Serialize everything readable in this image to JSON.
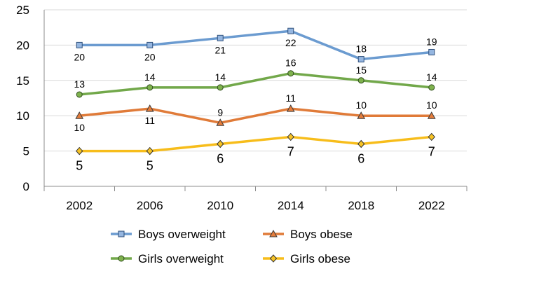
{
  "chart_data": {
    "type": "line",
    "title": "",
    "xlabel": "",
    "ylabel": "",
    "categories": [
      "2002",
      "2006",
      "2010",
      "2014",
      "2018",
      "2022"
    ],
    "ylim": [
      0,
      25
    ],
    "yticks": [
      "0",
      "5",
      "10",
      "15",
      "20",
      "25"
    ],
    "grid": true,
    "legend_position": "bottom",
    "series": [
      {
        "name": "Boys overweight",
        "values": [
          20,
          20,
          21,
          22,
          18,
          19
        ],
        "labels": [
          "20",
          "20",
          "21",
          "22",
          "18",
          "19"
        ],
        "color": "#6b9bd0",
        "marker": "square",
        "marker_fill": "#95b6e0",
        "marker_stroke": "#2e4f7a"
      },
      {
        "name": "Boys obese",
        "values": [
          10,
          11,
          9,
          11,
          10,
          10
        ],
        "labels": [
          "10",
          "11",
          "9",
          "11",
          "10",
          "10"
        ],
        "color": "#e07b39",
        "marker": "triangle",
        "marker_fill": "#e57d3c",
        "marker_stroke": "#3a3a3a"
      },
      {
        "name": "Girls overweight",
        "values": [
          13,
          14,
          14,
          16,
          15,
          14
        ],
        "labels": [
          "13",
          "14",
          "14",
          "16",
          "15",
          "14"
        ],
        "color": "#72a84a",
        "marker": "circle",
        "marker_fill": "#7fb24e",
        "marker_stroke": "#2f4d1c"
      },
      {
        "name": "Girls obese",
        "values": [
          5,
          5,
          6,
          7,
          6,
          7
        ],
        "labels": [
          "5",
          "5",
          "6",
          "7",
          "6",
          "7"
        ],
        "color": "#f7bd1b",
        "marker": "diamond",
        "marker_fill": "#f7c325",
        "marker_stroke": "#333333"
      }
    ]
  }
}
